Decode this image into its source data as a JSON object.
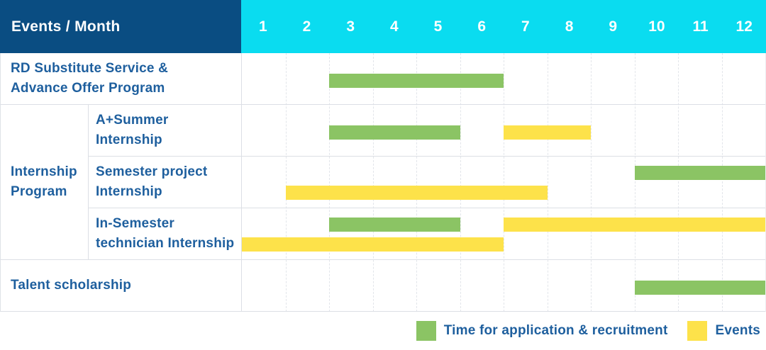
{
  "colors": {
    "header_bg": "#0a4d82",
    "months_bg": "#0adcf0",
    "label_text": "#1e5f9e",
    "application_green": "#8bc464",
    "event_yellow": "#fde24a"
  },
  "chart_data": {
    "type": "gantt",
    "corner_label": "Events / Month",
    "months": [
      "1",
      "2",
      "3",
      "4",
      "5",
      "6",
      "7",
      "8",
      "9",
      "10",
      "11",
      "12"
    ],
    "x_range": [
      1,
      12
    ],
    "group_label": "Internship\nProgram",
    "rows": [
      {
        "label": "RD Substitute Service &\nAdvance Offer Program",
        "group": null,
        "bars": [
          {
            "type": "application",
            "start_month": 3,
            "end_month": 6,
            "lane": "center"
          }
        ]
      },
      {
        "label": "A+Summer\nInternship",
        "group": "Internship Program",
        "bars": [
          {
            "type": "application",
            "start_month": 3,
            "end_month": 5,
            "lane": "center"
          },
          {
            "type": "event",
            "start_month": 7,
            "end_month": 8,
            "lane": "center"
          }
        ]
      },
      {
        "label": "Semester project\nInternship",
        "group": "Internship Program",
        "bars": [
          {
            "type": "application",
            "start_month": 10,
            "end_month": 12,
            "lane": "top"
          },
          {
            "type": "event",
            "start_month": 2,
            "end_month": 7,
            "lane": "bottom"
          }
        ]
      },
      {
        "label": "In-Semester\ntechnician Internship",
        "group": "Internship Program",
        "bars": [
          {
            "type": "application",
            "start_month": 3,
            "end_month": 5,
            "lane": "top"
          },
          {
            "type": "event",
            "start_month": 7,
            "end_month": 12,
            "lane": "top"
          },
          {
            "type": "event",
            "start_month": 1,
            "end_month": 6,
            "lane": "bottom"
          }
        ]
      },
      {
        "label": "Talent scholarship",
        "group": null,
        "bars": [
          {
            "type": "application",
            "start_month": 10,
            "end_month": 12,
            "lane": "center"
          }
        ]
      }
    ],
    "legend": [
      {
        "key": "application",
        "color": "#8bc464",
        "label": "Time for application & recruitment"
      },
      {
        "key": "event",
        "color": "#fde24a",
        "label": "Events"
      }
    ]
  }
}
